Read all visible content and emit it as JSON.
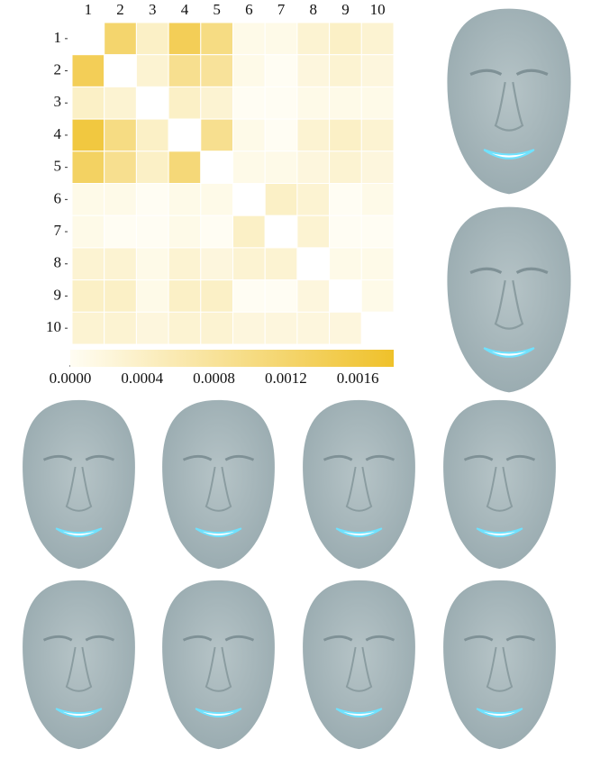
{
  "chart_data": {
    "type": "heatmap",
    "x_categories": [
      "1",
      "2",
      "3",
      "4",
      "5",
      "6",
      "7",
      "8",
      "9",
      "10"
    ],
    "y_categories": [
      "1",
      "2",
      "3",
      "4",
      "5",
      "6",
      "7",
      "8",
      "9",
      "10"
    ],
    "values": [
      [
        null,
        0.0012,
        0.0004,
        0.0014,
        0.001,
        0.0001,
        0.0001,
        0.0003,
        0.0004,
        0.0003
      ],
      [
        0.0014,
        null,
        0.0003,
        0.0009,
        0.0008,
        0.0001,
        0.0,
        0.0002,
        0.0003,
        0.0002
      ],
      [
        0.0004,
        0.0003,
        null,
        0.0004,
        0.0003,
        0.0,
        0.0,
        0.0001,
        0.0001,
        0.0001
      ],
      [
        0.0016,
        0.001,
        0.0004,
        null,
        0.0009,
        0.0001,
        0.0,
        0.0003,
        0.0004,
        0.0003
      ],
      [
        0.0013,
        0.0009,
        0.0004,
        0.0011,
        null,
        0.0001,
        0.0001,
        0.0002,
        0.0003,
        0.0002
      ],
      [
        0.0001,
        0.0001,
        0.0,
        0.0001,
        0.0001,
        null,
        0.0004,
        0.0003,
        0.0,
        0.0001
      ],
      [
        0.0001,
        0.0,
        0.0,
        0.0001,
        0.0,
        0.0004,
        null,
        0.0003,
        0.0,
        0.0
      ],
      [
        0.0003,
        0.0003,
        0.0001,
        0.0003,
        0.0002,
        0.0003,
        0.0003,
        null,
        0.0001,
        0.0001
      ],
      [
        0.0004,
        0.0004,
        0.0001,
        0.0004,
        0.0004,
        0.0,
        0.0,
        0.0002,
        null,
        0.0001
      ],
      [
        0.0003,
        0.0003,
        0.0002,
        0.0003,
        0.0003,
        0.0002,
        0.0002,
        0.0002,
        0.0002,
        null
      ]
    ],
    "clim": [
      0,
      0.0018
    ],
    "colors": [
      "#fffdf3",
      "#efc12a"
    ],
    "cticks": [
      {
        "value": 0,
        "label": "0.0000"
      },
      {
        "value": 0.0004,
        "label": "0.0004"
      },
      {
        "value": 0.0008,
        "label": "0.0008"
      },
      {
        "value": 0.0012,
        "label": "0.0012"
      },
      {
        "value": 0.0016,
        "label": "0.0016"
      }
    ]
  }
}
